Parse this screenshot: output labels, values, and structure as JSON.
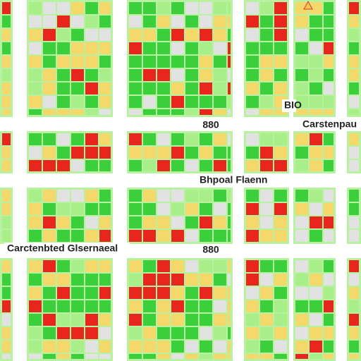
{
  "labels": {
    "top_number": "880",
    "top_right": "Carstenpau",
    "middle": "Bhpoal Flaenn",
    "left": "Carctenbted Glsernaeal",
    "bottom_number": "880",
    "side": "BIO"
  }
}
